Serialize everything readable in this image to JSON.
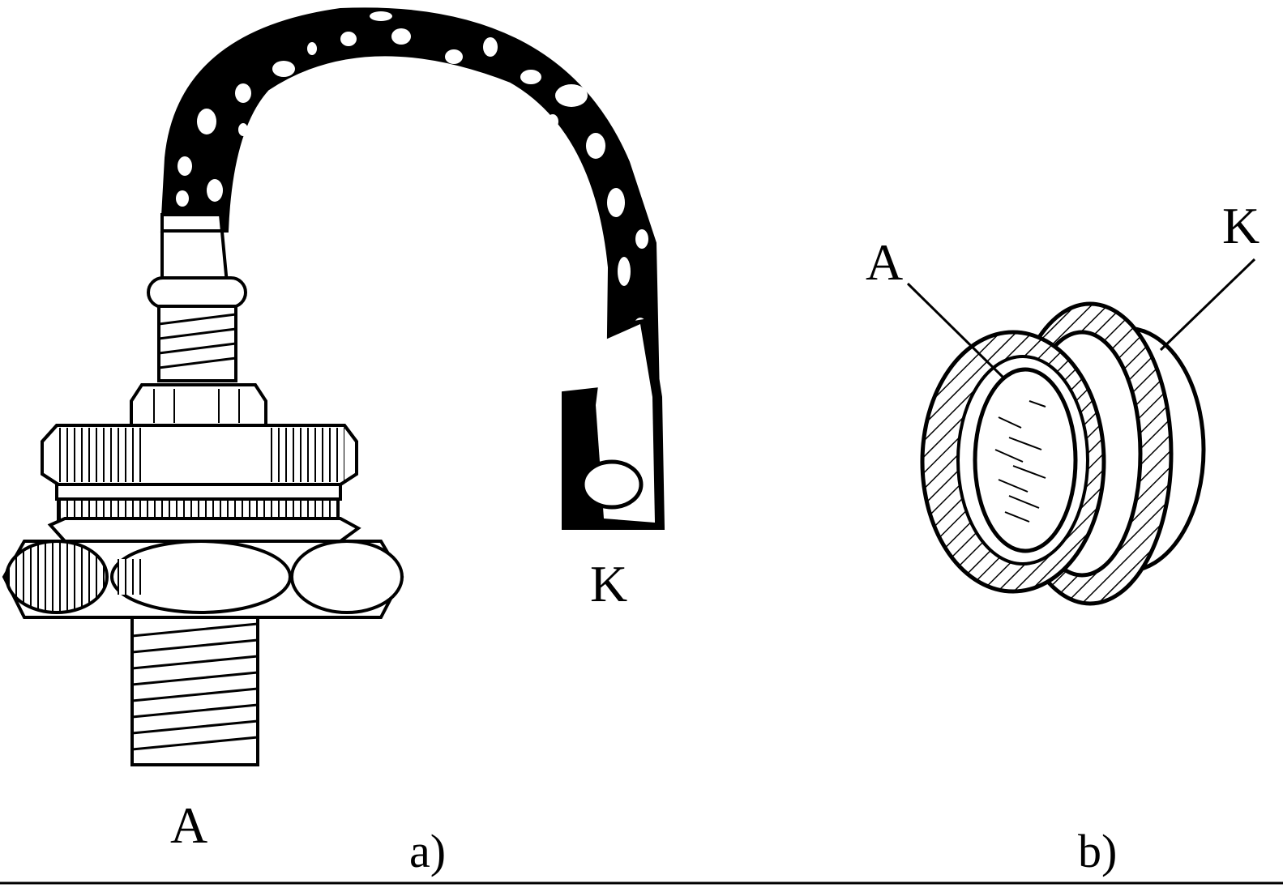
{
  "diagram": {
    "panel_a": {
      "caption": "a)",
      "label_anode": "A",
      "label_cathode": "K"
    },
    "panel_b": {
      "caption": "b)",
      "label_anode": "A",
      "label_cathode": "K"
    }
  },
  "colors": {
    "ink": "#000000",
    "paper": "#ffffff"
  }
}
